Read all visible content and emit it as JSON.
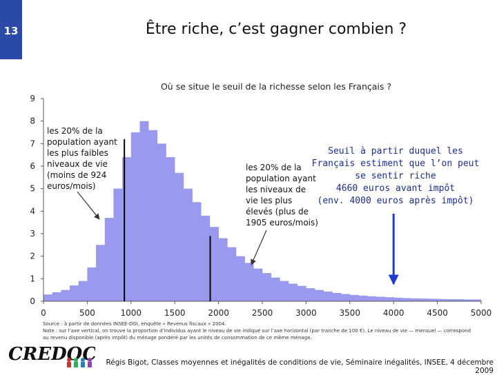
{
  "slide_number": "13",
  "title": "Être riche, c’est gagner combien ?",
  "chart_data": {
    "type": "bar",
    "title": "Où se situe le seuil de la richesse selon les Français ?",
    "x": [
      0,
      100,
      200,
      300,
      400,
      500,
      600,
      700,
      800,
      900,
      1000,
      1100,
      1200,
      1300,
      1400,
      1500,
      1600,
      1700,
      1800,
      1900,
      2000,
      2100,
      2200,
      2300,
      2400,
      2500,
      2600,
      2700,
      2800,
      2900,
      3000,
      3100,
      3200,
      3300,
      3400,
      3500,
      3600,
      3700,
      3800,
      3900,
      4000,
      4100,
      4200,
      4300,
      4400,
      4500,
      4600,
      4700,
      4800,
      4900
    ],
    "values": [
      0.3,
      0.4,
      0.5,
      0.7,
      0.9,
      1.5,
      2.5,
      3.7,
      5.0,
      6.4,
      7.5,
      8.0,
      7.6,
      7.0,
      6.4,
      5.7,
      5.0,
      4.4,
      3.8,
      3.3,
      2.8,
      2.4,
      2.0,
      1.7,
      1.45,
      1.25,
      1.05,
      0.9,
      0.78,
      0.68,
      0.58,
      0.5,
      0.43,
      0.37,
      0.32,
      0.28,
      0.25,
      0.22,
      0.2,
      0.18,
      0.16,
      0.14,
      0.13,
      0.12,
      0.11,
      0.1,
      0.09,
      0.09,
      0.08,
      0.08
    ],
    "xlim": [
      0,
      5000
    ],
    "ylim": [
      0,
      9
    ],
    "x_ticks": [
      "0",
      "500",
      "1000",
      "1500",
      "2000",
      "2500",
      "3000",
      "3500",
      "4000",
      "4500",
      "5000"
    ],
    "y_ticks": [
      "0",
      "1",
      "2",
      "3",
      "4",
      "5",
      "6",
      "7",
      "8",
      "9"
    ],
    "markers": [
      {
        "x": 924,
        "y": 7.2
      },
      {
        "x": 1905,
        "y": 2.9
      }
    ],
    "threshold_arrow_x": 4000,
    "colors": {
      "bar": "#9999ee",
      "line": "#000000",
      "arrow": "#1a3cc8",
      "axis": "#555555"
    }
  },
  "callouts": {
    "left": [
      "les 20% de la",
      "population ayant",
      "les plus faibles",
      "niveaux de vie",
      "(moins de 924",
      "euros/mois)"
    ],
    "right": [
      "les 20% de la",
      "population ayant",
      "les niveaux de",
      "vie les plus",
      "élevés (plus de",
      "1905 euros/mois)"
    ]
  },
  "note_right": "Seuil à partir duquel les\nFrançais estiment que l’on peut\nse sentir riche\n4660 euros avant impôt\n(env. 4000 euros après impôt)",
  "source_lines": [
    "Source : à partir de données INSEE-DGI, enquête « Revenus fiscaux » 2004.",
    "Note : sur l’axe vertical, on trouve la proportion d’individus ayant le niveau de vie indiqué sur l’axe horizontal (par tranche de 100 €). Le niveau de vie — mensuel — correspond",
    "au revenu disponible (après impôt) du ménage pondéré par les unités de consommation de ce même ménage."
  ],
  "logo_text": "CREDOC",
  "footer": "Régis Bigot, Classes moyennes et inégalités de conditions de vie, Séminaire inégalités, INSEE, 4 décembre 2009"
}
